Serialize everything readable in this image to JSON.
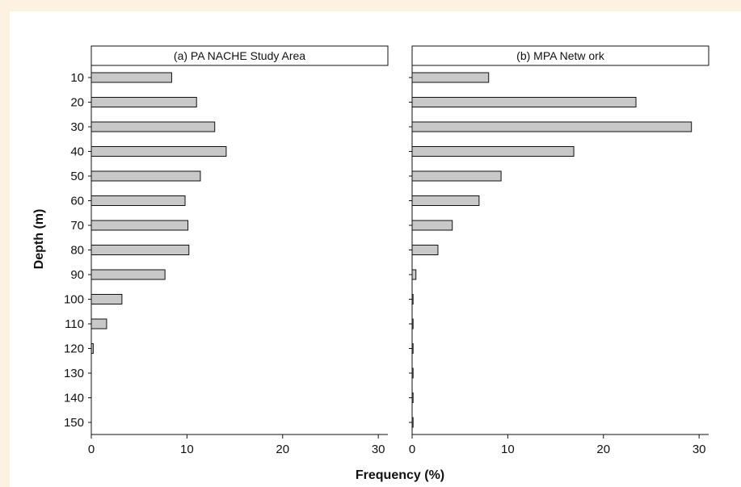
{
  "chart_data": {
    "type": "bar",
    "orientation": "horizontal",
    "ylabel": "Depth (m)",
    "xlabel": "Frequency (%)",
    "categories": [
      "10",
      "20",
      "30",
      "40",
      "50",
      "60",
      "70",
      "80",
      "90",
      "100",
      "110",
      "120",
      "130",
      "140",
      "150"
    ],
    "xlim": [
      0,
      31
    ],
    "xticks": [
      "0",
      "10",
      "20",
      "30"
    ],
    "grid": false,
    "bar_color": "#c8c8c8",
    "panels": [
      {
        "title": "(a) PA NACHE Study Area",
        "values": [
          8.4,
          11.0,
          12.9,
          14.1,
          11.4,
          9.8,
          10.1,
          10.2,
          7.7,
          3.2,
          1.6,
          0.2,
          0.0,
          0.0,
          0.0
        ]
      },
      {
        "title": "(b) MPA Netw ork",
        "values": [
          8.0,
          23.4,
          29.2,
          16.9,
          9.3,
          7.0,
          4.2,
          2.7,
          0.4,
          0.1,
          0.1,
          0.1,
          0.1,
          0.1,
          0.1
        ]
      }
    ]
  }
}
